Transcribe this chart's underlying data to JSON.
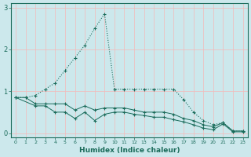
{
  "xlabel": "Humidex (Indice chaleur)",
  "ylabel": "",
  "background_color": "#cce8ec",
  "grid_color_h": "#f5b8b8",
  "grid_color_v": "#f5b8b8",
  "line_color": "#1a6b5a",
  "xlim": [
    -0.5,
    23.5
  ],
  "ylim": [
    -0.1,
    3.1
  ],
  "x_ticks": [
    0,
    1,
    2,
    3,
    4,
    5,
    6,
    7,
    8,
    9,
    10,
    11,
    12,
    13,
    14,
    15,
    16,
    17,
    18,
    19,
    20,
    21,
    22,
    23
  ],
  "y_ticks": [
    0,
    1,
    2,
    3
  ],
  "series": [
    {
      "x": [
        0,
        1,
        2,
        3,
        4,
        5,
        6,
        7,
        8,
        9,
        10,
        11,
        12,
        13,
        14,
        15,
        16,
        17,
        18,
        19,
        20,
        21,
        22,
        23
      ],
      "y": [
        0.85,
        0.85,
        0.9,
        1.05,
        1.2,
        1.5,
        1.8,
        2.1,
        2.5,
        2.85,
        1.05,
        1.05,
        1.05,
        1.05,
        1.05,
        1.05,
        1.05,
        0.8,
        0.5,
        0.3,
        0.2,
        0.25,
        0.05,
        0.05
      ],
      "style": "dotted",
      "marker": "+"
    },
    {
      "x": [
        0,
        1,
        2,
        3,
        4,
        5,
        6,
        7,
        8,
        9,
        10,
        11,
        12,
        13,
        14,
        15,
        16,
        17,
        18,
        19,
        20,
        21,
        22,
        23
      ],
      "y": [
        0.85,
        0.85,
        0.7,
        0.7,
        0.7,
        0.7,
        0.55,
        0.65,
        0.55,
        0.6,
        0.6,
        0.6,
        0.55,
        0.5,
        0.5,
        0.5,
        0.45,
        0.35,
        0.3,
        0.2,
        0.15,
        0.25,
        0.05,
        0.05
      ],
      "style": "solid",
      "marker": "+"
    },
    {
      "x": [
        0,
        2,
        3,
        4,
        5,
        6,
        7,
        8,
        9,
        10,
        11,
        12,
        13,
        14,
        15,
        16,
        17,
        18,
        19,
        20,
        21,
        22,
        23
      ],
      "y": [
        0.85,
        0.65,
        0.65,
        0.5,
        0.5,
        0.35,
        0.5,
        0.3,
        0.45,
        0.5,
        0.5,
        0.45,
        0.42,
        0.38,
        0.38,
        0.32,
        0.27,
        0.2,
        0.12,
        0.08,
        0.22,
        0.03,
        0.03
      ],
      "style": "solid",
      "marker": "+"
    }
  ]
}
